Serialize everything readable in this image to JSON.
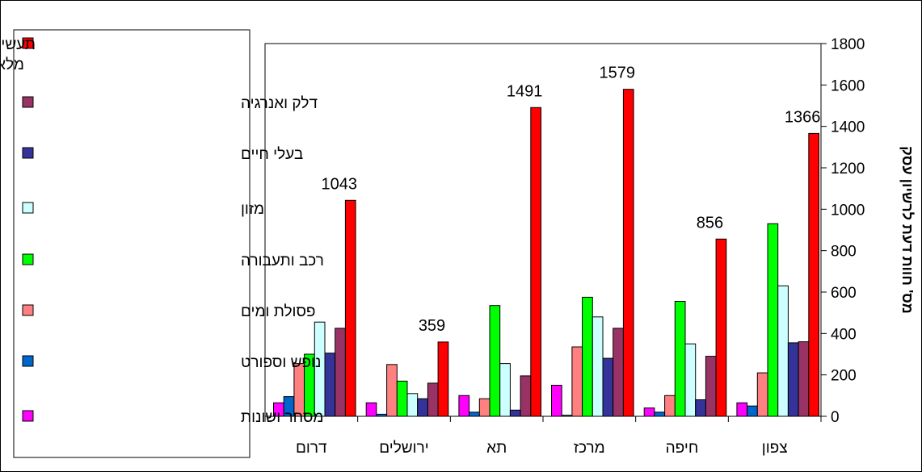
{
  "chart_data": {
    "type": "bar",
    "categories": [
      "צפון",
      "חיפה",
      "מרכז",
      "תא",
      "ירושלים",
      "דרום"
    ],
    "ylabel": "מס' חוות דעת לרשיון עסק",
    "ylim": [
      0,
      1800
    ],
    "yticks": [
      0,
      200,
      400,
      600,
      800,
      1000,
      1200,
      1400,
      1600,
      1800
    ],
    "y_axis_side": "right",
    "grid": false,
    "legend_position": "left",
    "series": [
      {
        "name": "מסחר ושונות",
        "color": "#FF00FF",
        "values": [
          65,
          40,
          150,
          100,
          65,
          65
        ]
      },
      {
        "name": "נופש וספורט",
        "color": "#0066CC",
        "values": [
          50,
          20,
          5,
          20,
          10,
          95
        ]
      },
      {
        "name": "פסולת ומים",
        "color": "#FF8080",
        "values": [
          210,
          100,
          335,
          85,
          250,
          255
        ]
      },
      {
        "name": "רכב ותעבורה",
        "color": "#00FF00",
        "values": [
          930,
          555,
          575,
          535,
          170,
          300
        ]
      },
      {
        "name": "מזון",
        "color": "#CCFFFF",
        "values": [
          630,
          350,
          480,
          255,
          110,
          455
        ]
      },
      {
        "name": "בעלי חיים",
        "color": "#333399",
        "values": [
          355,
          80,
          280,
          30,
          85,
          305
        ]
      },
      {
        "name": "דלק ואנרגיה",
        "color": "#993366",
        "values": [
          360,
          290,
          425,
          195,
          160,
          425
        ]
      },
      {
        "name": "תעשיה, חומרים קוסמטים, מלאכה,כימיה, מחצבים",
        "color": "#FF0000",
        "values": [
          1366,
          856,
          1579,
          1491,
          359,
          1043
        ]
      }
    ],
    "data_labels_series": "תעשיה, חומרים קוסמטים, מלאכה,כימיה, מחצבים"
  }
}
